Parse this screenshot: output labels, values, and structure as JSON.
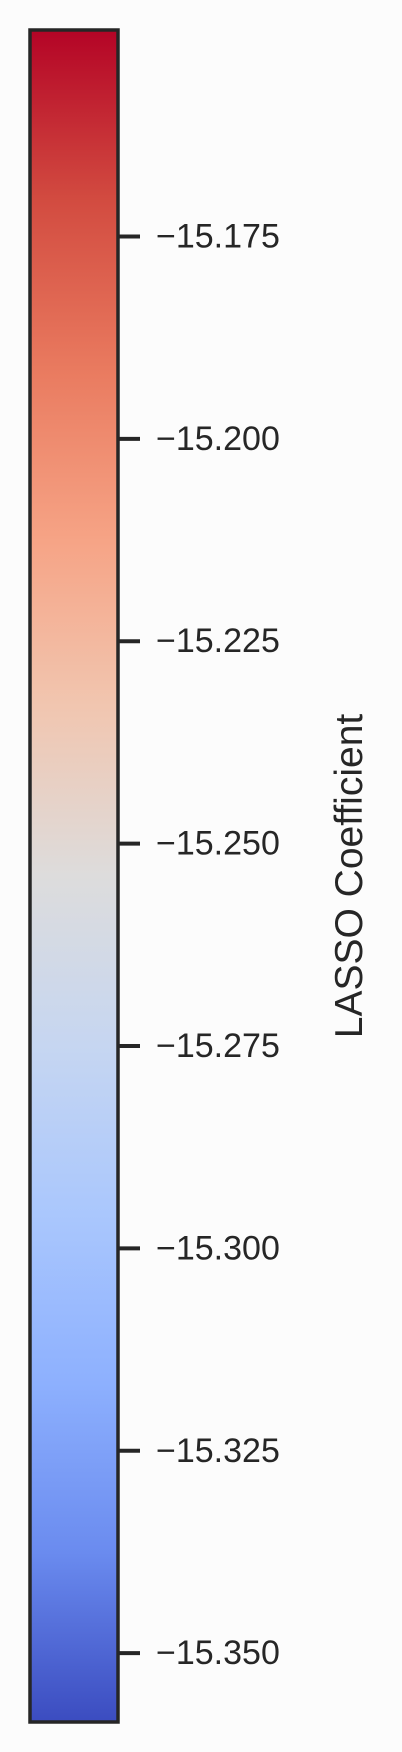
{
  "chart_data": {
    "type": "colorbar",
    "orientation": "vertical",
    "colormap": "coolwarm",
    "label": "LASSO Coefficient",
    "vmin": -15.3585,
    "vmax": -15.1495,
    "ticks": [
      -15.175,
      -15.2,
      -15.225,
      -15.25,
      -15.275,
      -15.3,
      -15.325,
      -15.35
    ],
    "tick_labels": [
      "−15.175",
      "−15.200",
      "−15.225",
      "−15.250",
      "−15.275",
      "−15.300",
      "−15.325",
      "−15.350"
    ],
    "color_stops": [
      {
        "offset": 0.0,
        "color": "#b40426"
      },
      {
        "offset": 0.1,
        "color": "#d24b40"
      },
      {
        "offset": 0.2,
        "color": "#e97a5f"
      },
      {
        "offset": 0.3,
        "color": "#f6a385"
      },
      {
        "offset": 0.4,
        "color": "#f1c6b0"
      },
      {
        "offset": 0.5,
        "color": "#dddcdc"
      },
      {
        "offset": 0.6,
        "color": "#c6d6f1"
      },
      {
        "offset": 0.7,
        "color": "#aac7fd"
      },
      {
        "offset": 0.8,
        "color": "#8db0fe"
      },
      {
        "offset": 0.9,
        "color": "#6a8bef"
      },
      {
        "offset": 1.0,
        "color": "#3b4cc0"
      }
    ],
    "frame_color": "#262626",
    "text_color": "#262626"
  }
}
